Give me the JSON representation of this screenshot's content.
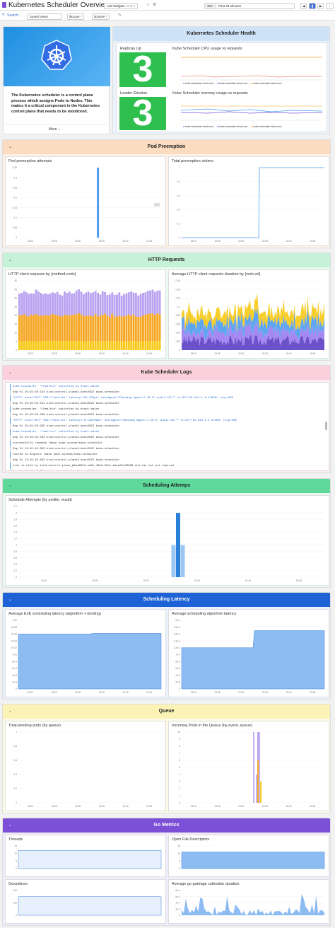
{
  "header": {
    "title": "Kubernetes Scheduler Overview",
    "add_widgets": "Add Widgets",
    "shortcut": "Cmd+I",
    "time_chip": "30m",
    "time_range": "Past 30 Minutes"
  },
  "toolbar": {
    "search": "Search...",
    "saved_views": "Saved Views",
    "var1": "$scope",
    "var1_val": "*",
    "var2": "$cluster",
    "var2_val": "*"
  },
  "about": {
    "text": "The Kubernetes scheduler is a control plane process which assigns Pods to Nodes. This makes it a critical component in the Kubernetes control plane that needs to be monitored.",
    "more": "More"
  },
  "health": {
    "title": "Kubernetes Scheduler Health",
    "replicas_label": "Replicas Up",
    "replicas_value": "3",
    "leader_label": "Leader Election",
    "leader_value": "3",
    "cpu_title": "Kube Scheduler CPU usage vs requests",
    "mem_title": "Kube Scheduler memory usage vs requests",
    "legend": [
      "kube-scheduler-kind-cont...",
      "kube-scheduler-kind-cont...",
      "kube-scheduler-kind-cont..."
    ]
  },
  "groups": {
    "g1": "Pod Preemption",
    "g2": "HTTP Requests",
    "g3": "Kube Scheduler Logs",
    "g4": "Scheduling Attemps",
    "g5": "Scheduling Latency",
    "g6": "Queue",
    "g7": "Go Metrics"
  },
  "colors": {
    "blue": "#4e9cf0",
    "orange": "#f5a623",
    "purple": "#b9a2f0",
    "yellow": "#f7c916",
    "green": "#2fbf4f"
  },
  "widgets": {
    "w1": "Pod preemption attempts",
    "w2": "Total preemption victims",
    "w3": "HTTP client requests by {method,code}",
    "w4": "Average HTTP client requests duration by {verb,url}",
    "w5": "Schedule Attempts (by profile, result)",
    "w6": "Average E2E scheduling latency {algorithm + binding}",
    "w7": "Average scheduling algorithm latency",
    "w8": "Total pending pods (by queue)",
    "w9": "Incoming Pods in the Queue (by event, queue)",
    "w10": "Threads",
    "w11": "Open File Descriptors",
    "w12": "Goroutines",
    "w13": "Average go garbage collection duration"
  },
  "xticks": [
    "15:20",
    "15:25",
    "15:30",
    "15:35",
    "15:40",
    "15:45"
  ],
  "axes": {
    "w1": [
      "0.35",
      "0.3",
      "0.25",
      "0.2",
      "0.15",
      "0.1",
      "0.05",
      "0"
    ],
    "w2": [
      "1",
      "0.8",
      "0.6",
      "0.4",
      "0.2",
      "0"
    ],
    "w3": [
      "40",
      "35",
      "30",
      "25",
      "20",
      "15",
      "10",
      "5",
      "0"
    ],
    "w4": [
      "0.16",
      "0.14",
      "0.12",
      "0.1",
      "0.08",
      "0.06",
      "0.04",
      "0.02",
      "0"
    ],
    "w5": [
      "2.2",
      "2",
      "1.8",
      "1.6",
      "1.4",
      "1.2",
      "1",
      "0.8",
      "0.6",
      "0.4",
      "0.2",
      "0"
    ],
    "w6": [
      "0.02",
      "0.018",
      "0.016",
      "0.014",
      "0.012",
      "0.01",
      "8e-3",
      "6e-3",
      "4e-3",
      "2e-3",
      "0"
    ],
    "w7": [
      "2e-4",
      "1.8e-4",
      "1.6e-4",
      "1.4e-4",
      "1.2e-4",
      "1e-4",
      "8e-5",
      "6e-5",
      "4e-5",
      "2e-5",
      "0"
    ],
    "w8": [
      "1",
      "0.8",
      "0.6",
      "0.4",
      "0.2",
      "0"
    ],
    "w9": [
      "10",
      "9",
      "8",
      "7",
      "6",
      "5",
      "4",
      "3",
      "2",
      "1",
      "0"
    ],
    "w10": [
      "15",
      "10",
      "5",
      "0"
    ],
    "w11": [
      "15",
      "10",
      "5",
      "0"
    ],
    "w12": [
      "200",
      "100",
      "0"
    ],
    "w13": [
      "8e-4",
      "6e-4",
      "4e-4",
      "2e-4",
      "0"
    ]
  },
  "logs": [
    {
      "t": "kube-scheduler: \"/healthz\" satisfied by exact match",
      "c": "#2a6fcf"
    },
    {
      "t": "Sep 01 15:45:50.544  kind-control-plane2-dash2022  kube-scheduler",
      "c": "#333"
    },
    {
      "t": "\"HTTP\" verb=\"GET\" URI=\"/healthz\" latency=\"62.375µs\" userAgent=\"Datadog Agent/7.40.0\" audit-ID=\"\" srcIP=\"10.244.1.2:47898\" resp=200",
      "c": "#2a6fcf"
    },
    {
      "t": "Sep 01 15:45:50.544  kind-control-plane2-dash2022  kube-scheduler",
      "c": "#333"
    },
    {
      "t": "kube-scheduler: \"/healthz\" satisfied by exact match",
      "c": "#333"
    },
    {
      "t": "Sep 01 15:45:50.588  kind-control-plane2-dash2022  kube-scheduler",
      "c": "#333"
    },
    {
      "t": "\"HTTP\" verb=\"GET\" URI=\"/metrics\" latency=\"9.149709ms\" userAgent=\"Datadog Agent/7.40.0\" audit-ID=\"\" srcIP=\"10.244.1.2:47886\" resp=200",
      "c": "#2a6fcf"
    },
    {
      "t": "Sep 01 15:45:50.585  kind-control-plane2-dash2022  kube-scheduler",
      "c": "#333"
    },
    {
      "t": "kube-scheduler: \"/metrics\" satisfied by exact match",
      "c": "#2a6fcf"
    },
    {
      "t": "Sep 01 15:45:50.583  kind-control-plane2-dash2022  kube-scheduler",
      "c": "#333"
    },
    {
      "t": "successfully renewed lease kube-system/kube-scheduler",
      "c": "#333"
    },
    {
      "t": "Sep 01 13:45:49.863  kind-control-plane3-dash2022  kube-scheduler",
      "c": "#333"
    },
    {
      "t": "failed to acquire lease kube-system/kube-scheduler",
      "c": "#333"
    },
    {
      "t": "Sep 01 13:45:49.863  kind-control-plane3-dash2022  kube-scheduler",
      "c": "#333"
    },
    {
      "t": "lock is held by kind-control-plane_@1ae06d2-ea6e-49bb-92bc-bdca61af8908 and has not yet expired",
      "c": "#333"
    },
    {
      "t": "Sep 01 13:45:44.704  kind-control-plane3-dash2022  kube-scheduler",
      "c": "#333"
    }
  ],
  "chart_data": [
    {
      "type": "bar",
      "title": "Pod preemption attempts",
      "x": [
        "15:30"
      ],
      "values": [
        0.35
      ],
      "ylim": [
        0,
        0.35
      ]
    },
    {
      "type": "line",
      "title": "Total preemption victims",
      "x": [
        "15:20",
        "15:31",
        "15:32",
        "15:47"
      ],
      "values": [
        0,
        0,
        1,
        1
      ],
      "ylim": [
        0,
        1
      ]
    },
    {
      "type": "bar",
      "title": "Schedule Attempts (by profile, result)",
      "x": [
        "15:29",
        "15:30",
        "15:31"
      ],
      "values": [
        1,
        2,
        1
      ],
      "ylim": [
        0,
        2.2
      ]
    },
    {
      "type": "area",
      "title": "Average E2E scheduling latency {algorithm + binding}",
      "values": [
        0.016,
        0.016,
        0.0162,
        0.0162
      ],
      "ylim": [
        0,
        0.02
      ]
    },
    {
      "type": "area",
      "title": "Average scheduling algorithm latency",
      "x": [
        "15:20",
        "15:35",
        "15:36",
        "15:47"
      ],
      "values": [
        0.00012,
        0.00012,
        0.00017,
        0.00017
      ],
      "ylim": [
        0,
        0.0002
      ]
    },
    {
      "type": "area",
      "title": "Threads",
      "values": [
        12,
        12
      ],
      "ylim": [
        0,
        15
      ]
    },
    {
      "type": "area",
      "title": "Open File Descriptors",
      "values": [
        11,
        11
      ],
      "ylim": [
        0,
        15
      ]
    },
    {
      "type": "area",
      "title": "Goroutines",
      "values": [
        150,
        150
      ],
      "ylim": [
        0,
        200
      ]
    }
  ]
}
